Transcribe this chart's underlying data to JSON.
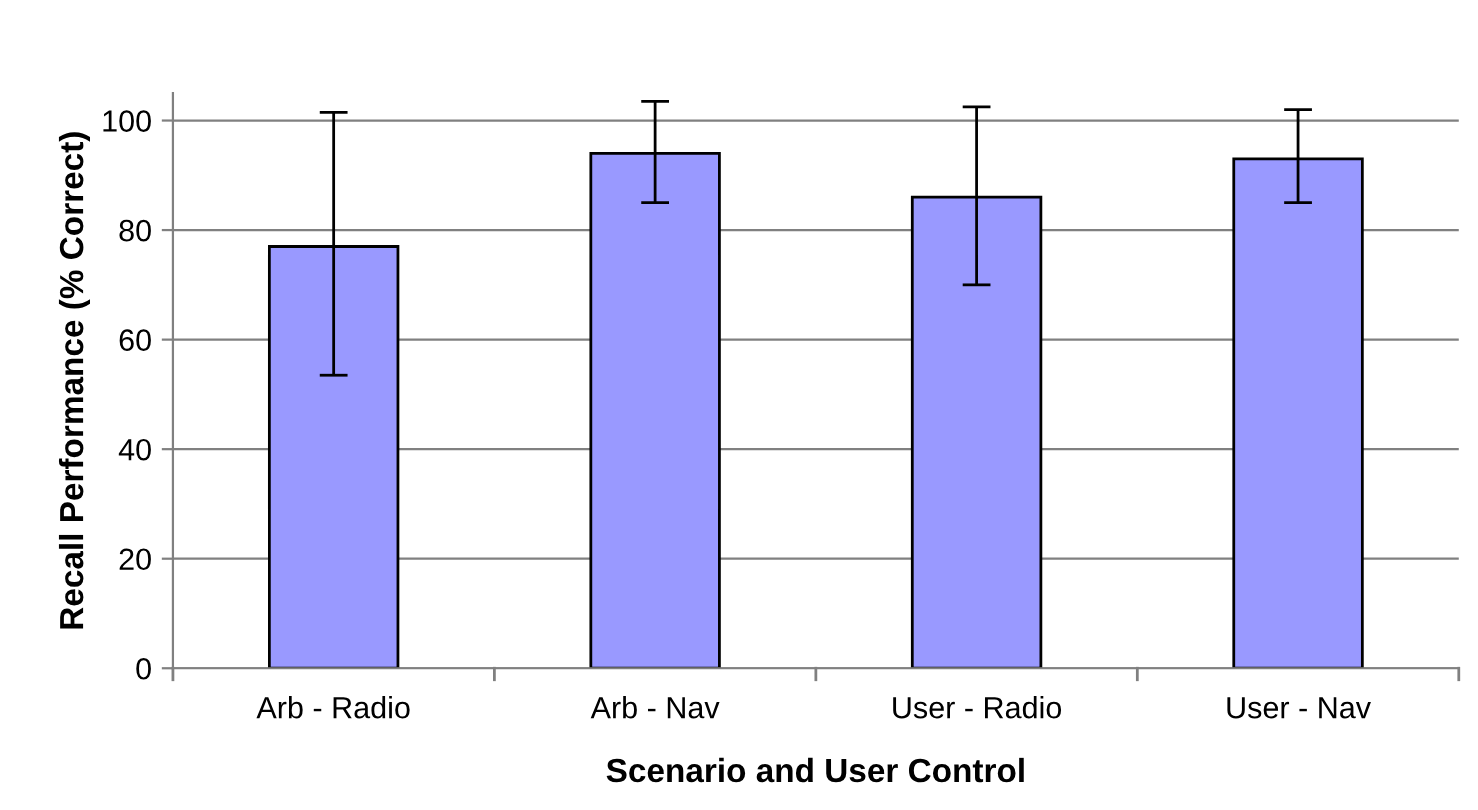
{
  "chart_data": {
    "type": "bar",
    "xlabel": "Scenario and User Control",
    "ylabel": "Recall Performance (% Correct)",
    "categories": [
      "Arb - Radio",
      "Arb - Nav",
      "User - Radio",
      "User - Nav"
    ],
    "values": [
      77,
      94,
      86,
      93
    ],
    "errors": [
      [
        53.5,
        101.5
      ],
      [
        85,
        103.5
      ],
      [
        70,
        102.5
      ],
      [
        85,
        102
      ]
    ],
    "color": "#9999ff",
    "ylim": [
      0,
      105
    ],
    "yticks": [
      0,
      20,
      40,
      60,
      80,
      100
    ],
    "grid": "y"
  }
}
